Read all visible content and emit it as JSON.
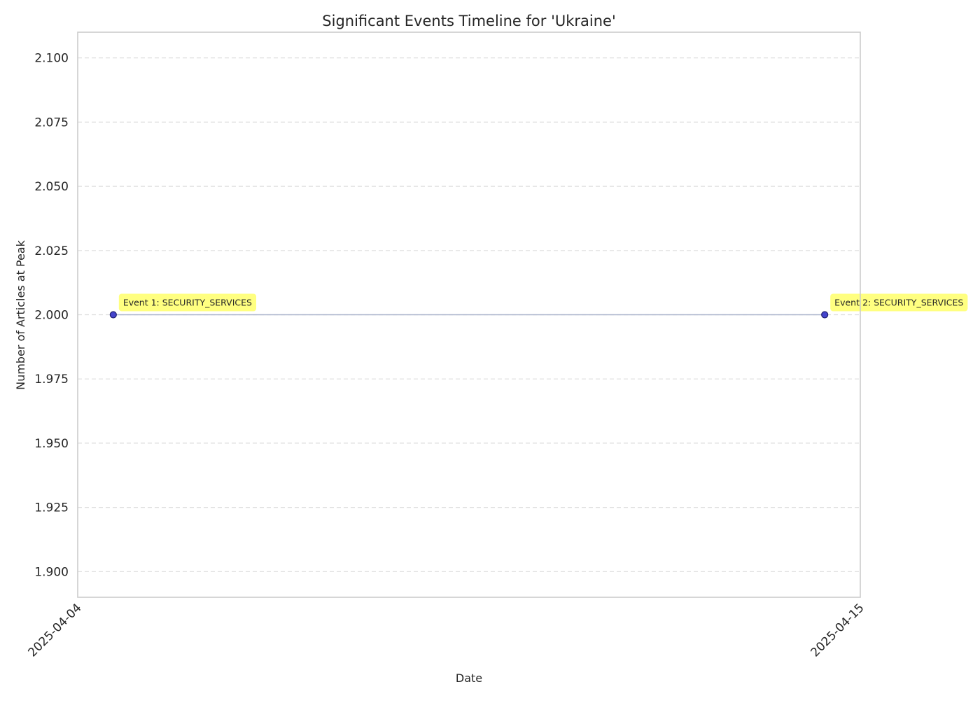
{
  "chart_data": {
    "type": "line",
    "title": "Significant Events Timeline for 'Ukraine'",
    "xlabel": "Date",
    "ylabel": "Number of Articles at Peak",
    "x_axis_type": "date",
    "xlim": [
      "2025-04-04",
      "2025-04-15"
    ],
    "x_ticks": [
      "2025-04-04",
      "2025-04-15"
    ],
    "ylim": [
      1.89,
      2.11
    ],
    "y_ticks": [
      1.9,
      1.925,
      1.95,
      1.975,
      2.0,
      2.025,
      2.05,
      2.075,
      2.1
    ],
    "y_tick_labels": [
      "1.900",
      "1.925",
      "1.950",
      "1.975",
      "2.000",
      "2.025",
      "2.050",
      "2.075",
      "2.100"
    ],
    "grid": "horizontal-dashed",
    "series": [
      {
        "x": [
          "2025-04-04T12:00:00",
          "2025-04-14T12:00:00"
        ],
        "y": [
          2,
          2
        ],
        "line_color": "#aab4cc",
        "marker_color": "#4444cc",
        "marker_edge_color": "#1f1f6e"
      }
    ],
    "annotations": [
      {
        "point_index": 0,
        "text": "Event 1: SECURITY_SERVICES"
      },
      {
        "point_index": 1,
        "text": "Event 2: SECURITY_SERVICES"
      }
    ],
    "annotation_bg_color": "#ffff80",
    "frame_color": "#cccccc",
    "grid_color": "#dddddd",
    "text_color": "#262626"
  }
}
